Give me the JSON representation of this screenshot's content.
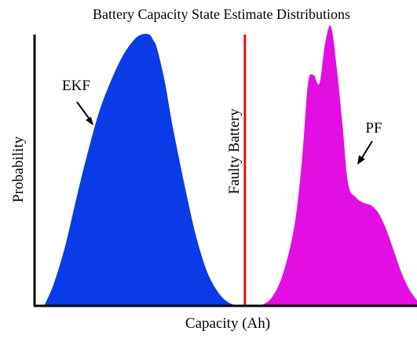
{
  "chart_data": {
    "type": "area",
    "title": "Battery Capacity State Estimate Distributions",
    "xlabel": "Capacity (Ah)",
    "ylabel": "Probability",
    "grid": false,
    "legend": "none",
    "xlim": [
      0,
      10
    ],
    "ylim": [
      0,
      1
    ],
    "series": [
      {
        "name": "EKF",
        "color": "#0a3be6",
        "x": [
          0.25,
          0.5,
          0.8,
          1.1,
          1.4,
          1.7,
          2.0,
          2.3,
          2.6,
          2.8,
          3.0,
          3.1,
          3.2,
          3.4,
          3.6,
          3.9,
          4.2,
          4.5,
          4.8,
          5.1,
          5.4
        ],
        "y": [
          0.0,
          0.08,
          0.22,
          0.4,
          0.57,
          0.72,
          0.83,
          0.92,
          0.98,
          1.0,
          1.0,
          0.98,
          0.95,
          0.83,
          0.67,
          0.46,
          0.27,
          0.13,
          0.05,
          0.01,
          0.0
        ]
      },
      {
        "name": "PF",
        "color": "#e20ee2",
        "x": [
          5.9,
          6.2,
          6.5,
          6.8,
          7.0,
          7.15,
          7.3,
          7.45,
          7.6,
          7.75,
          7.9,
          8.05,
          8.2,
          8.4,
          8.6,
          8.8,
          9.0,
          9.2,
          9.4,
          9.6,
          9.8,
          10.0
        ],
        "y": [
          0.0,
          0.03,
          0.12,
          0.3,
          0.55,
          0.82,
          0.85,
          0.82,
          0.97,
          1.03,
          0.88,
          0.67,
          0.45,
          0.4,
          0.38,
          0.37,
          0.34,
          0.28,
          0.2,
          0.12,
          0.06,
          0.02
        ]
      }
    ],
    "reference_line": {
      "label": "Faulty Battery",
      "x": 5.5,
      "color": "#e01010"
    },
    "annotations": [
      {
        "text": "EKF",
        "target": "EKF"
      },
      {
        "text": "PF",
        "target": "PF"
      }
    ]
  }
}
